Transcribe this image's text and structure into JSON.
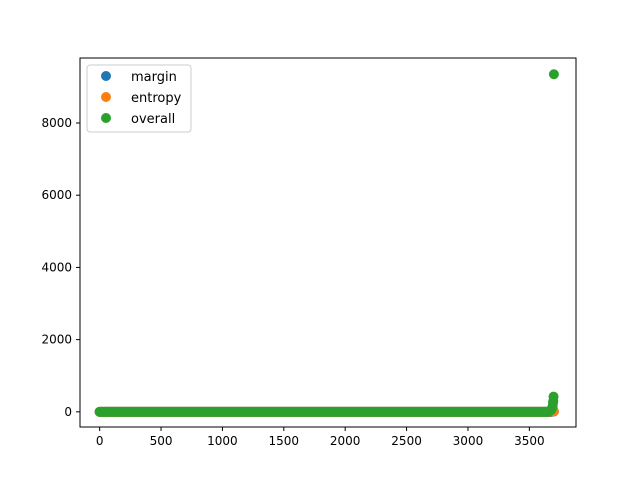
{
  "chart_data": {
    "type": "scatter",
    "title": "",
    "xlabel": "",
    "ylabel": "",
    "xlim": [
      -160,
      3880
    ],
    "ylim": [
      -420,
      9800
    ],
    "xticks": [
      0,
      500,
      1000,
      1500,
      2000,
      2500,
      3000,
      3500
    ],
    "yticks": [
      0,
      2000,
      4000,
      6000,
      8000
    ],
    "grid": false,
    "legend_position": "top-left",
    "n_points": 3700,
    "series": [
      {
        "name": "margin",
        "color": "#1f77b4",
        "baseline": 0,
        "tail": [
          [
            3680,
            3
          ],
          [
            3690,
            6
          ],
          [
            3700,
            10
          ]
        ]
      },
      {
        "name": "entropy",
        "color": "#ff7f0e",
        "baseline": 0,
        "tail": [
          [
            3685,
            8
          ],
          [
            3695,
            15
          ],
          [
            3700,
            20
          ]
        ]
      },
      {
        "name": "overall",
        "color": "#2ca02c",
        "baseline": 0,
        "tail": [
          [
            3660,
            15
          ],
          [
            3670,
            30
          ],
          [
            3680,
            60
          ],
          [
            3685,
            100
          ],
          [
            3690,
            160
          ],
          [
            3693,
            250
          ],
          [
            3695,
            300
          ],
          [
            3697,
            420
          ],
          [
            3700,
            9350
          ]
        ]
      }
    ]
  }
}
